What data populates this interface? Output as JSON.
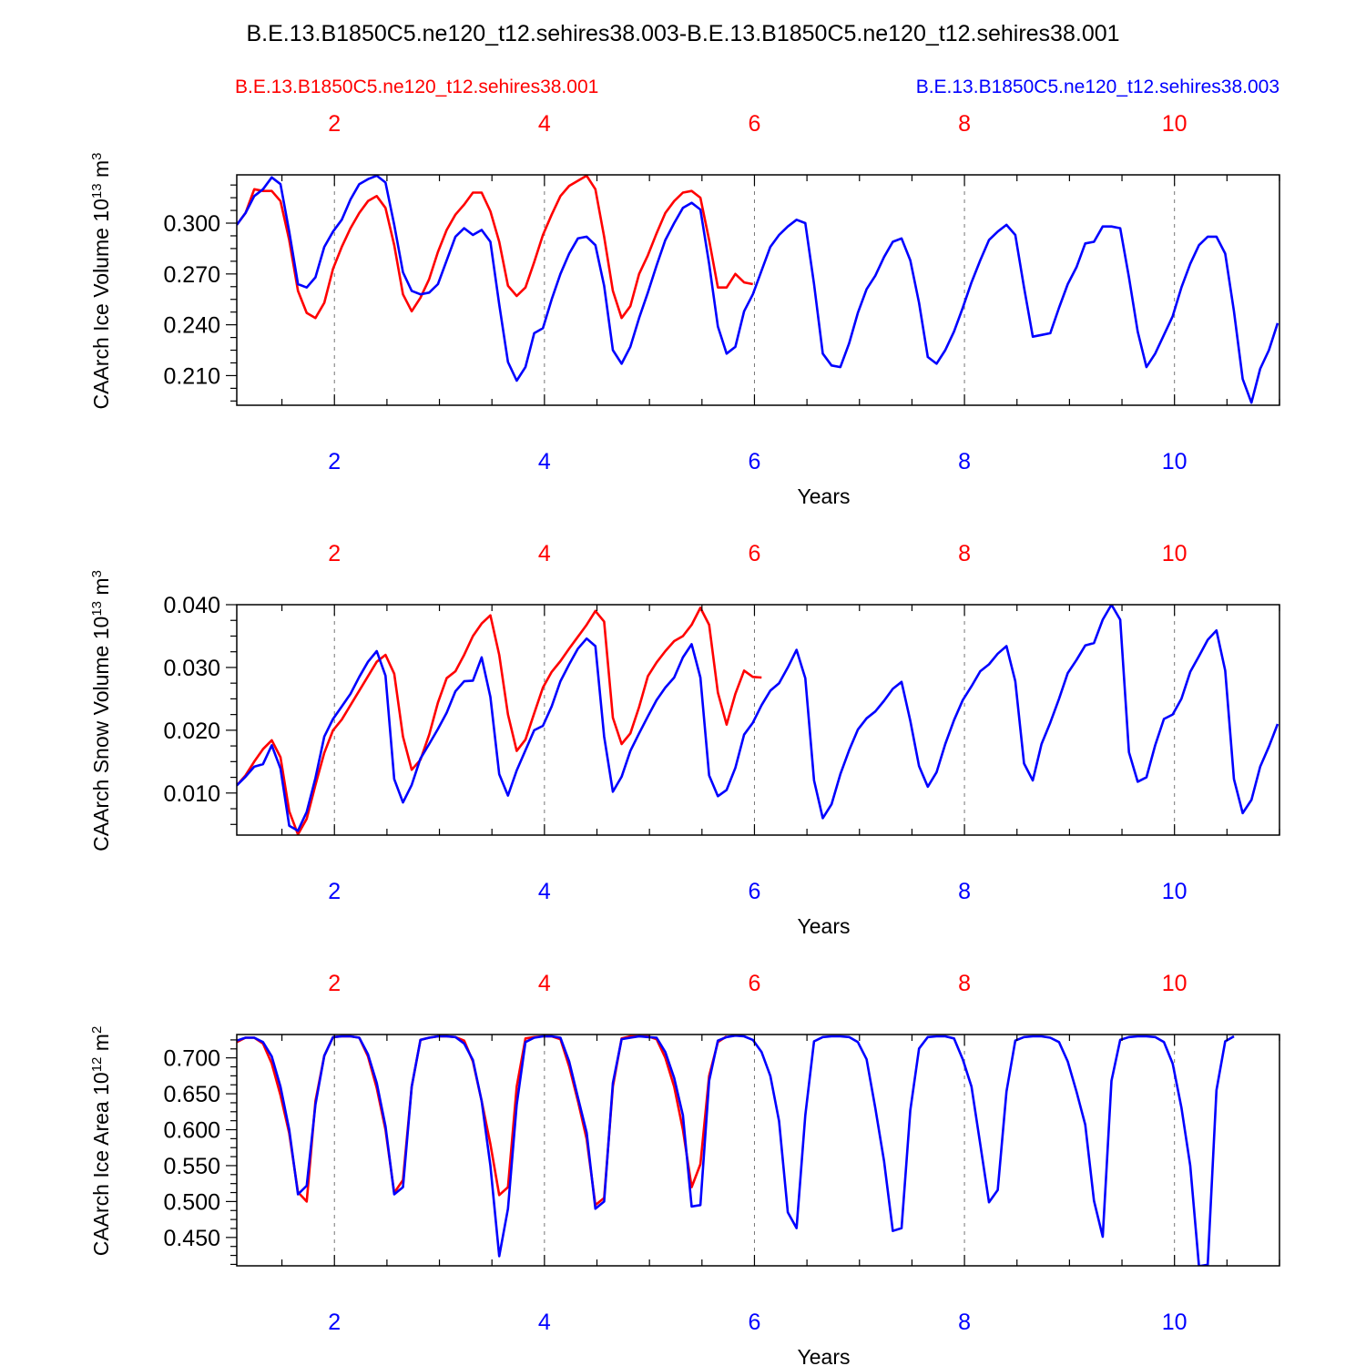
{
  "title": "B.E.13.B1850C5.ne120_t12.sehires38.003-B.E.13.B1850C5.ne120_t12.sehires38.001",
  "legend_left": "B.E.13.B1850C5.ne120_t12.sehires38.001",
  "legend_right": "B.E.13.B1850C5.ne120_t12.sehires38.003",
  "colors": {
    "red": "#ff0000",
    "blue": "#0000ff",
    "black": "#000000"
  },
  "chart_data": [
    {
      "type": "line",
      "ylabel": "CAArch Ice Volume 10",
      "ylabel_exp": "13",
      "ylabel_unit": " m",
      "ylabel_unit_exp": "3",
      "xlabel": "Years",
      "xlim": [
        1.07,
        11.0
      ],
      "ylim": [
        0.1925,
        0.3285
      ],
      "yticks": [
        0.21,
        0.24,
        0.27,
        0.3
      ],
      "ytick_labels": [
        "0.210",
        "0.240",
        "0.270",
        "0.300"
      ],
      "yminor_step": 0.0075,
      "xticks": [
        2,
        4,
        6,
        8,
        10
      ],
      "xtick_labels": [
        "2",
        "4",
        "6",
        "8",
        "10"
      ],
      "series": [
        {
          "name": "B.E.13.B1850C5.ne120_t12.sehires38.001",
          "color": "red",
          "start": 1.07,
          "step": 0.0833,
          "values": [
            0.299,
            0.306,
            0.32,
            0.319,
            0.319,
            0.313,
            0.29,
            0.26,
            0.247,
            0.244,
            0.253,
            0.273,
            0.286,
            0.297,
            0.306,
            0.313,
            0.316,
            0.309,
            0.287,
            0.258,
            0.248,
            0.256,
            0.267,
            0.283,
            0.296,
            0.305,
            0.311,
            0.318,
            0.318,
            0.307,
            0.289,
            0.263,
            0.257,
            0.262,
            0.277,
            0.293,
            0.305,
            0.316,
            0.322,
            0.325,
            0.328,
            0.32,
            0.292,
            0.26,
            0.244,
            0.251,
            0.27,
            0.281,
            0.294,
            0.306,
            0.313,
            0.318,
            0.319,
            0.315,
            0.29,
            0.262,
            0.262,
            0.27,
            0.265,
            0.264
          ]
        },
        {
          "name": "B.E.13.B1850C5.ne120_t12.sehires38.003",
          "color": "blue",
          "start": 1.07,
          "step": 0.0833,
          "values": [
            0.299,
            0.306,
            0.316,
            0.32,
            0.327,
            0.323,
            0.295,
            0.264,
            0.262,
            0.268,
            0.286,
            0.295,
            0.302,
            0.314,
            0.323,
            0.326,
            0.328,
            0.324,
            0.299,
            0.271,
            0.26,
            0.258,
            0.259,
            0.264,
            0.278,
            0.292,
            0.297,
            0.293,
            0.296,
            0.289,
            0.252,
            0.218,
            0.207,
            0.215,
            0.235,
            0.238,
            0.255,
            0.27,
            0.282,
            0.291,
            0.292,
            0.287,
            0.263,
            0.225,
            0.217,
            0.227,
            0.244,
            0.259,
            0.275,
            0.29,
            0.3,
            0.309,
            0.312,
            0.308,
            0.276,
            0.239,
            0.223,
            0.227,
            0.248,
            0.258,
            0.272,
            0.286,
            0.293,
            0.298,
            0.302,
            0.3,
            0.264,
            0.223,
            0.216,
            0.215,
            0.229,
            0.247,
            0.261,
            0.269,
            0.28,
            0.289,
            0.291,
            0.278,
            0.253,
            0.221,
            0.217,
            0.225,
            0.236,
            0.25,
            0.265,
            0.278,
            0.29,
            0.295,
            0.299,
            0.293,
            0.262,
            0.233,
            0.234,
            0.235,
            0.25,
            0.264,
            0.274,
            0.288,
            0.289,
            0.298,
            0.298,
            0.297,
            0.268,
            0.236,
            0.215,
            0.223,
            0.234,
            0.245,
            0.262,
            0.276,
            0.287,
            0.292,
            0.292,
            0.282,
            0.248,
            0.208,
            0.194,
            0.214,
            0.225,
            0.241
          ]
        }
      ]
    },
    {
      "type": "line",
      "ylabel": "CAArch Snow Volume 10",
      "ylabel_exp": "13",
      "ylabel_unit": " m",
      "ylabel_unit_exp": "3",
      "xlabel": "Years",
      "xlim": [
        1.07,
        11.0
      ],
      "ylim": [
        0.0033,
        0.04
      ],
      "yticks": [
        0.01,
        0.02,
        0.03,
        0.04
      ],
      "ytick_labels": [
        "0.010",
        "0.020",
        "0.030",
        "0.040"
      ],
      "yminor_step": 0.0025,
      "xticks": [
        2,
        4,
        6,
        8,
        10
      ],
      "xtick_labels": [
        "2",
        "4",
        "6",
        "8",
        "10"
      ],
      "series": [
        {
          "name": "B.E.13.B1850C5.ne120_t12.sehires38.001",
          "color": "red",
          "start": 1.07,
          "step": 0.0833,
          "values": [
            0.0112,
            0.0128,
            0.015,
            0.017,
            0.0184,
            0.0157,
            0.0071,
            0.0034,
            0.0059,
            0.0113,
            0.0164,
            0.02,
            0.0217,
            0.024,
            0.0263,
            0.0286,
            0.0309,
            0.032,
            0.029,
            0.019,
            0.0137,
            0.0153,
            0.0193,
            0.0244,
            0.0283,
            0.0294,
            0.032,
            0.035,
            0.037,
            0.0383,
            0.032,
            0.0225,
            0.0167,
            0.0185,
            0.0227,
            0.0268,
            0.0293,
            0.031,
            0.033,
            0.0349,
            0.0368,
            0.039,
            0.0373,
            0.022,
            0.0178,
            0.0195,
            0.0237,
            0.0286,
            0.0308,
            0.0326,
            0.0342,
            0.035,
            0.0368,
            0.0395,
            0.0368,
            0.026,
            0.0209,
            0.0258,
            0.0295,
            0.0285,
            0.0284
          ]
        },
        {
          "name": "B.E.13.B1850C5.ne120_t12.sehires38.003",
          "color": "blue",
          "start": 1.07,
          "step": 0.0833,
          "values": [
            0.0112,
            0.0126,
            0.0142,
            0.0146,
            0.0176,
            0.0139,
            0.0048,
            0.004,
            0.007,
            0.0124,
            0.019,
            0.0218,
            0.0238,
            0.0258,
            0.0285,
            0.0309,
            0.0326,
            0.0287,
            0.0122,
            0.0085,
            0.0113,
            0.0155,
            0.0178,
            0.0202,
            0.0228,
            0.0262,
            0.0278,
            0.0279,
            0.0316,
            0.0253,
            0.013,
            0.0096,
            0.0136,
            0.0168,
            0.02,
            0.0207,
            0.0238,
            0.0278,
            0.0305,
            0.033,
            0.0346,
            0.0334,
            0.019,
            0.0102,
            0.0126,
            0.0167,
            0.0195,
            0.0222,
            0.0248,
            0.0268,
            0.0284,
            0.0316,
            0.0337,
            0.0284,
            0.0128,
            0.0095,
            0.0105,
            0.014,
            0.0193,
            0.0212,
            0.024,
            0.0263,
            0.0275,
            0.03,
            0.0328,
            0.0283,
            0.012,
            0.006,
            0.0082,
            0.013,
            0.0168,
            0.0201,
            0.0219,
            0.023,
            0.0247,
            0.0266,
            0.0277,
            0.0215,
            0.0143,
            0.011,
            0.0133,
            0.0178,
            0.0216,
            0.0248,
            0.027,
            0.0294,
            0.0305,
            0.0322,
            0.0334,
            0.0278,
            0.0147,
            0.012,
            0.0178,
            0.0212,
            0.025,
            0.0291,
            0.0312,
            0.0335,
            0.0339,
            0.0376,
            0.04,
            0.0376,
            0.0165,
            0.0118,
            0.0125,
            0.0176,
            0.0218,
            0.0225,
            0.025,
            0.0293,
            0.0318,
            0.0344,
            0.0359,
            0.0295,
            0.0122,
            0.0068,
            0.0089,
            0.0142,
            0.0174,
            0.021
          ]
        }
      ]
    },
    {
      "type": "line",
      "ylabel": "CAArch Ice Area 10",
      "ylabel_exp": "12",
      "ylabel_unit": " m",
      "ylabel_unit_exp": "2",
      "xlabel": "Years",
      "xlim": [
        1.07,
        11.0
      ],
      "ylim": [
        0.4105,
        0.7325
      ],
      "yticks": [
        0.45,
        0.5,
        0.55,
        0.6,
        0.65,
        0.7
      ],
      "ytick_labels": [
        "0.450",
        "0.500",
        "0.550",
        "0.600",
        "0.650",
        "0.700"
      ],
      "yminor_step": 0.0125,
      "xticks": [
        2,
        4,
        6,
        8,
        10
      ],
      "xtick_labels": [
        "2",
        "4",
        "6",
        "8",
        "10"
      ],
      "series": [
        {
          "name": "B.E.13.B1850C5.ne120_t12.sehires38.001",
          "color": "red",
          "start": 1.07,
          "step": 0.0833,
          "values": [
            0.722,
            0.728,
            0.728,
            0.72,
            0.692,
            0.648,
            0.595,
            0.513,
            0.5,
            0.64,
            0.703,
            0.729,
            0.73,
            0.73,
            0.728,
            0.702,
            0.658,
            0.6,
            0.512,
            0.53,
            0.66,
            0.725,
            0.728,
            0.73,
            0.73,
            0.729,
            0.724,
            0.695,
            0.64,
            0.58,
            0.509,
            0.52,
            0.66,
            0.727,
            0.729,
            0.73,
            0.73,
            0.726,
            0.688,
            0.64,
            0.587,
            0.495,
            0.505,
            0.66,
            0.727,
            0.73,
            0.73,
            0.73,
            0.726,
            0.7,
            0.66,
            0.6,
            0.52,
            0.552,
            0.675,
            0.722,
            0.73
          ]
        },
        {
          "name": "B.E.13.B1850C5.ne120_t12.sehires38.003",
          "color": "blue",
          "start": 1.07,
          "step": 0.0833,
          "values": [
            0.724,
            0.728,
            0.728,
            0.722,
            0.702,
            0.66,
            0.6,
            0.51,
            0.522,
            0.635,
            0.703,
            0.729,
            0.73,
            0.73,
            0.728,
            0.705,
            0.665,
            0.605,
            0.51,
            0.52,
            0.66,
            0.725,
            0.728,
            0.73,
            0.73,
            0.729,
            0.72,
            0.697,
            0.64,
            0.55,
            0.424,
            0.49,
            0.635,
            0.722,
            0.728,
            0.73,
            0.73,
            0.728,
            0.695,
            0.645,
            0.596,
            0.49,
            0.5,
            0.665,
            0.726,
            0.728,
            0.73,
            0.729,
            0.728,
            0.708,
            0.672,
            0.62,
            0.493,
            0.495,
            0.668,
            0.724,
            0.729,
            0.731,
            0.73,
            0.725,
            0.708,
            0.675,
            0.612,
            0.485,
            0.463,
            0.62,
            0.723,
            0.729,
            0.73,
            0.73,
            0.729,
            0.722,
            0.698,
            0.63,
            0.556,
            0.459,
            0.463,
            0.627,
            0.713,
            0.729,
            0.73,
            0.73,
            0.727,
            0.698,
            0.66,
            0.58,
            0.499,
            0.516,
            0.653,
            0.724,
            0.729,
            0.73,
            0.73,
            0.728,
            0.722,
            0.695,
            0.653,
            0.607,
            0.501,
            0.451,
            0.668,
            0.725,
            0.729,
            0.73,
            0.73,
            0.729,
            0.722,
            0.692,
            0.631,
            0.55,
            0.41,
            0.412,
            0.655,
            0.723,
            0.73
          ]
        }
      ]
    }
  ]
}
